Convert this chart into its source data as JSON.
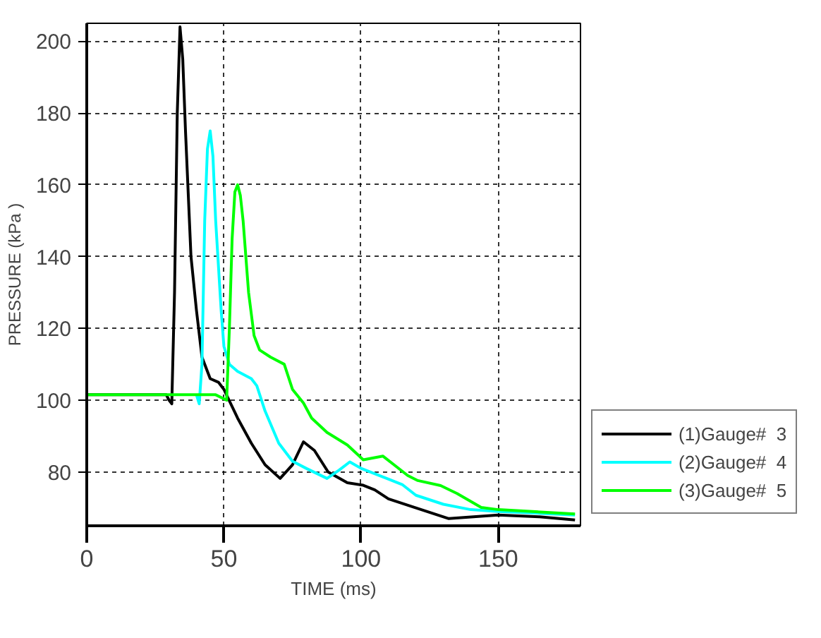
{
  "chart_data": {
    "type": "line",
    "xlabel": "TIME (ms)",
    "ylabel": "PRESSURE (kPa )",
    "xlim": [
      0,
      180
    ],
    "ylim": [
      65,
      205
    ],
    "xticks": [
      0,
      50,
      100,
      150
    ],
    "yticks": [
      80,
      100,
      120,
      140,
      160,
      180,
      200
    ],
    "grid": true,
    "legend": "bottom right",
    "line_style": "solid",
    "marker": "none",
    "series": [
      {
        "name": "(1)Gauge#  3",
        "color": "#000000",
        "x": [
          0,
          29,
          30,
          31,
          32,
          33,
          34,
          35,
          36,
          38,
          40,
          42,
          45,
          48,
          50,
          55,
          60,
          65,
          70.5,
          75,
          79,
          83,
          88,
          95,
          100.8,
          105,
          110,
          120,
          132,
          150,
          165,
          178
        ],
        "values": [
          101.5,
          101.5,
          100,
          99,
          130,
          180,
          204,
          195,
          175,
          140,
          125,
          112,
          106,
          105,
          103,
          95,
          88,
          82,
          78.2,
          82,
          88.4,
          86,
          80,
          77,
          76.3,
          75,
          72.5,
          70,
          67,
          68,
          67.5,
          66.6
        ]
      },
      {
        "name": "(2)Gauge#  4",
        "color": "#00ffff",
        "x": [
          40,
          41,
          42,
          43,
          44,
          45,
          46,
          47,
          49,
          50,
          52,
          55,
          60,
          62,
          65,
          70,
          75,
          80,
          87.6,
          92,
          95.9,
          100,
          110,
          115,
          120,
          130,
          140,
          150,
          178
        ],
        "values": [
          101.5,
          99,
          110,
          150,
          170,
          175,
          168,
          150,
          125,
          115,
          110,
          108,
          106,
          104,
          97,
          88,
          83,
          81,
          78.2,
          80.5,
          82.8,
          81,
          78,
          76.5,
          73.5,
          71,
          69.5,
          69,
          68
        ]
      },
      {
        "name": "(3)Gauge#  5",
        "color": "#00ff00",
        "x": [
          0,
          47,
          51,
          52,
          53,
          54,
          55,
          56,
          57,
          59,
          61,
          63,
          67,
          72,
          75,
          79,
          82,
          87.6,
          95,
          100.8,
          108,
          112,
          117,
          120.7,
          129,
          135,
          143.8,
          150,
          178
        ],
        "values": [
          101.5,
          101.5,
          100,
          120,
          145,
          158,
          160,
          157,
          150,
          130,
          118,
          114,
          112,
          110,
          103,
          99.2,
          95,
          91,
          87.5,
          83.4,
          84.4,
          82,
          79,
          77.6,
          76.2,
          74,
          70.1,
          69.5,
          68.3
        ]
      }
    ]
  }
}
